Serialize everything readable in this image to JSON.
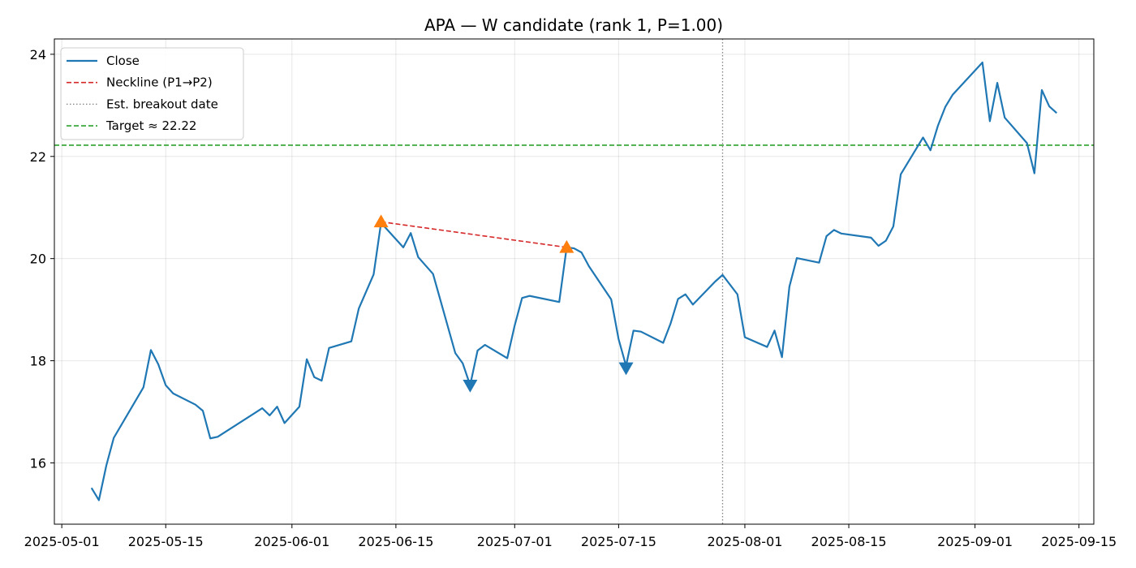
{
  "chart_data": {
    "type": "line",
    "title": "APA — W candidate (rank 1, P=1.00)",
    "xlabel": "",
    "ylabel": "",
    "x_range": [
      "2025-04-30",
      "2025-09-17"
    ],
    "ylim": [
      14.8,
      24.3
    ],
    "grid": true,
    "legend_position": "top-left",
    "x_ticks": [
      "2025-05-01",
      "2025-05-15",
      "2025-06-01",
      "2025-06-15",
      "2025-07-01",
      "2025-07-15",
      "2025-08-01",
      "2025-08-15",
      "2025-09-01",
      "2025-09-15"
    ],
    "y_ticks": [
      16,
      18,
      20,
      22,
      24
    ],
    "series": [
      {
        "name": "Close",
        "color": "#1f77b4",
        "style": "solid",
        "points": [
          [
            "2025-05-05",
            15.51
          ],
          [
            "2025-05-06",
            15.27
          ],
          [
            "2025-05-07",
            15.95
          ],
          [
            "2025-05-08",
            16.49
          ],
          [
            "2025-05-12",
            17.48
          ],
          [
            "2025-05-13",
            18.21
          ],
          [
            "2025-05-14",
            17.93
          ],
          [
            "2025-05-15",
            17.52
          ],
          [
            "2025-05-16",
            17.36
          ],
          [
            "2025-05-19",
            17.14
          ],
          [
            "2025-05-20",
            17.02
          ],
          [
            "2025-05-21",
            16.48
          ],
          [
            "2025-05-22",
            16.51
          ],
          [
            "2025-05-28",
            17.07
          ],
          [
            "2025-05-29",
            16.93
          ],
          [
            "2025-05-30",
            17.1
          ],
          [
            "2025-05-31",
            16.78
          ],
          [
            "2025-06-02",
            17.1
          ],
          [
            "2025-06-03",
            18.03
          ],
          [
            "2025-06-04",
            17.68
          ],
          [
            "2025-06-05",
            17.61
          ],
          [
            "2025-06-06",
            18.25
          ],
          [
            "2025-06-09",
            18.38
          ],
          [
            "2025-06-10",
            19.02
          ],
          [
            "2025-06-12",
            19.69
          ],
          [
            "2025-06-13",
            20.7
          ],
          [
            "2025-06-16",
            20.22
          ],
          [
            "2025-06-17",
            20.5
          ],
          [
            "2025-06-18",
            20.03
          ],
          [
            "2025-06-20",
            19.7
          ],
          [
            "2025-06-23",
            18.15
          ],
          [
            "2025-06-24",
            17.95
          ],
          [
            "2025-06-25",
            17.52
          ],
          [
            "2025-06-26",
            18.2
          ],
          [
            "2025-06-27",
            18.31
          ],
          [
            "2025-06-30",
            18.05
          ],
          [
            "2025-07-01",
            18.69
          ],
          [
            "2025-07-02",
            19.23
          ],
          [
            "2025-07-03",
            19.27
          ],
          [
            "2025-07-07",
            19.15
          ],
          [
            "2025-07-08",
            20.22
          ],
          [
            "2025-07-09",
            20.2
          ],
          [
            "2025-07-10",
            20.12
          ],
          [
            "2025-07-11",
            19.85
          ],
          [
            "2025-07-14",
            19.2
          ],
          [
            "2025-07-15",
            18.42
          ],
          [
            "2025-07-16",
            17.9
          ],
          [
            "2025-07-17",
            18.59
          ],
          [
            "2025-07-18",
            18.57
          ],
          [
            "2025-07-21",
            18.35
          ],
          [
            "2025-07-22",
            18.73
          ],
          [
            "2025-07-23",
            19.21
          ],
          [
            "2025-07-24",
            19.3
          ],
          [
            "2025-07-25",
            19.1
          ],
          [
            "2025-07-28",
            19.55
          ],
          [
            "2025-07-29",
            19.68
          ],
          [
            "2025-07-31",
            19.3
          ],
          [
            "2025-08-01",
            18.46
          ],
          [
            "2025-08-04",
            18.27
          ],
          [
            "2025-08-05",
            18.59
          ],
          [
            "2025-08-06",
            18.07
          ],
          [
            "2025-08-07",
            19.45
          ],
          [
            "2025-08-08",
            20.01
          ],
          [
            "2025-08-11",
            19.92
          ],
          [
            "2025-08-12",
            20.44
          ],
          [
            "2025-08-13",
            20.56
          ],
          [
            "2025-08-14",
            20.49
          ],
          [
            "2025-08-18",
            20.41
          ],
          [
            "2025-08-19",
            20.25
          ],
          [
            "2025-08-20",
            20.35
          ],
          [
            "2025-08-21",
            20.63
          ],
          [
            "2025-08-22",
            21.65
          ],
          [
            "2025-08-25",
            22.37
          ],
          [
            "2025-08-26",
            22.12
          ],
          [
            "2025-08-27",
            22.6
          ],
          [
            "2025-08-28",
            22.97
          ],
          [
            "2025-08-29",
            23.21
          ],
          [
            "2025-09-02",
            23.84
          ],
          [
            "2025-09-03",
            22.69
          ],
          [
            "2025-09-04",
            23.44
          ],
          [
            "2025-09-05",
            22.76
          ],
          [
            "2025-09-08",
            22.26
          ],
          [
            "2025-09-09",
            21.67
          ],
          [
            "2025-09-10",
            23.3
          ],
          [
            "2025-09-11",
            22.98
          ],
          [
            "2025-09-12",
            22.85
          ]
        ]
      },
      {
        "name": "Neckline (P1→P2)",
        "color": "#d62728",
        "style": "dashed",
        "points": [
          [
            "2025-06-13",
            20.72
          ],
          [
            "2025-07-08",
            20.22
          ]
        ]
      }
    ],
    "vline": {
      "name": "Est. breakout date",
      "x": "2025-07-29",
      "color": "#808080",
      "style": "dotted"
    },
    "hline": {
      "name": "Target ≈ 22.22",
      "y": 22.22,
      "color": "#2ca02c",
      "style": "dashed"
    },
    "markers": [
      {
        "kind": "peak",
        "symbol": "triangle-up",
        "color": "#ff7f0e",
        "x": "2025-06-13",
        "y": 20.72
      },
      {
        "kind": "peak",
        "symbol": "triangle-up",
        "color": "#ff7f0e",
        "x": "2025-07-08",
        "y": 20.22
      },
      {
        "kind": "trough",
        "symbol": "triangle-down",
        "color": "#1f77b4",
        "x": "2025-06-25",
        "y": 17.52
      },
      {
        "kind": "trough",
        "symbol": "triangle-down",
        "color": "#1f77b4",
        "x": "2025-07-16",
        "y": 17.86
      }
    ]
  }
}
